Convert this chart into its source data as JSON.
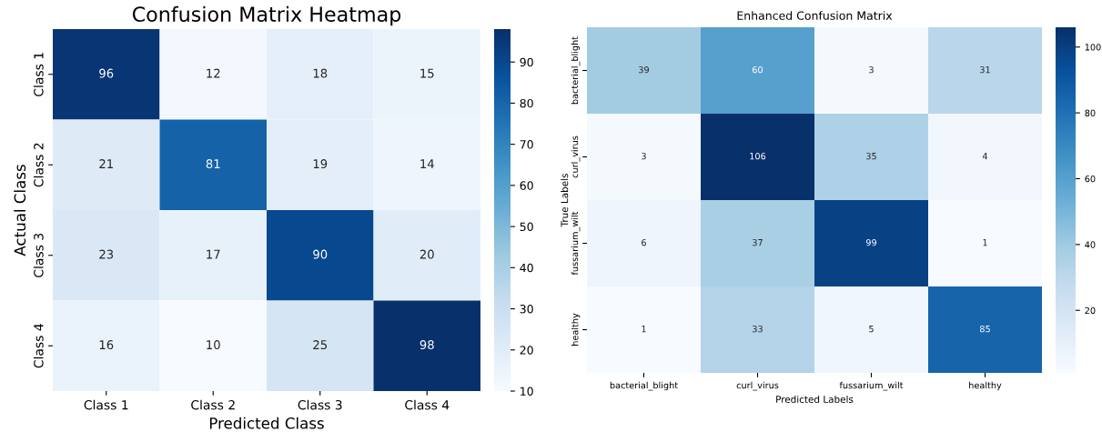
{
  "chart_data": [
    {
      "type": "heatmap",
      "title": "Confusion Matrix Heatmap",
      "xlabel": "Predicted Class",
      "ylabel": "Actual Class",
      "categories": [
        "Class 1",
        "Class 2",
        "Class 3",
        "Class 4"
      ],
      "y_categories": [
        "Class 1",
        "Class 2",
        "Class 3",
        "Class 4"
      ],
      "cells": [
        [
          96,
          12,
          18,
          15
        ],
        [
          21,
          81,
          19,
          14
        ],
        [
          23,
          17,
          90,
          20
        ],
        [
          16,
          10,
          25,
          98
        ]
      ],
      "clim": [
        10,
        98
      ],
      "cticks": [
        10,
        20,
        30,
        40,
        50,
        60,
        70,
        80,
        90
      ],
      "data_labels": true
    },
    {
      "type": "heatmap",
      "title": "Enhanced Confusion Matrix",
      "xlabel": "Predicted Labels",
      "ylabel": "True Labels",
      "categories": [
        "bacterial_blight",
        "curl_virus",
        "fussarium_wilt",
        "healthy"
      ],
      "y_categories": [
        "bacterial_blight",
        "curl_virus",
        "fussarium_wilt",
        "healthy"
      ],
      "cells": [
        [
          39,
          60,
          3,
          31
        ],
        [
          3,
          106,
          35,
          4
        ],
        [
          6,
          37,
          99,
          1
        ],
        [
          1,
          33,
          5,
          85
        ]
      ],
      "clim": [
        1,
        106
      ],
      "cticks": [
        20,
        40,
        60,
        80,
        100
      ],
      "data_labels": true
    }
  ]
}
